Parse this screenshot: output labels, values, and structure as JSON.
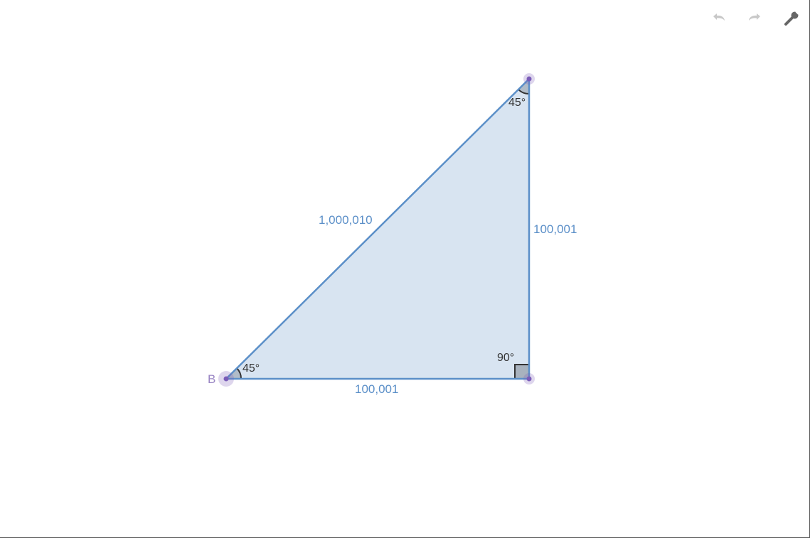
{
  "toolbar": {
    "undo_icon": "undo-icon",
    "redo_icon": "redo-icon",
    "settings_icon": "wrench-icon"
  },
  "figure": {
    "type": "right-triangle",
    "vertices": [
      {
        "id": "B",
        "label": "B"
      },
      {
        "id": "top",
        "label": ""
      },
      {
        "id": "right",
        "label": ""
      }
    ],
    "segments": [
      {
        "id": "hypotenuse",
        "label": "1,000,010"
      },
      {
        "id": "vertical",
        "label": "100,001"
      },
      {
        "id": "base",
        "label": "100,001"
      }
    ],
    "angles": [
      {
        "id": "angle-b",
        "label": "45°"
      },
      {
        "id": "angle-top",
        "label": "45°"
      },
      {
        "id": "angle-right",
        "label": "90°"
      }
    ]
  },
  "colors": {
    "stroke": "#5b8fc8",
    "fill": "#d8e4f1",
    "point": "#7a5cb8",
    "angle_fill": "#a8b2be",
    "disabled_icon": "#c8c8c8",
    "icon": "#666666"
  }
}
